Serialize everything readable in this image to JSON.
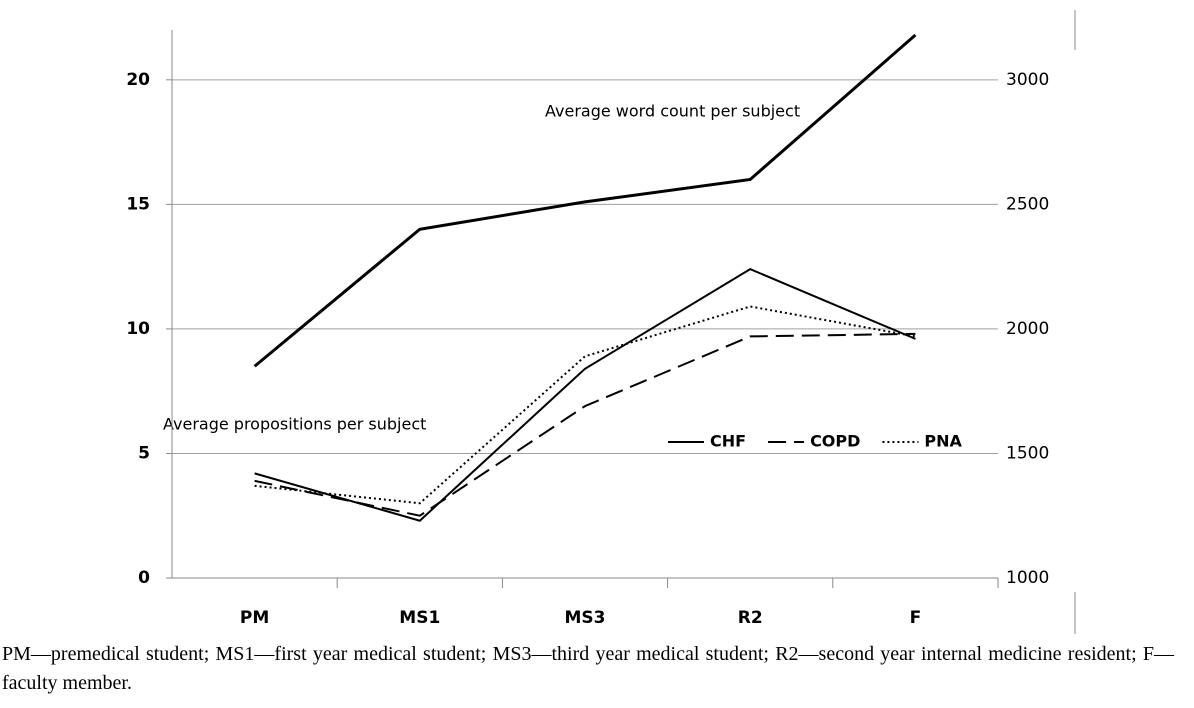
{
  "chart_data": {
    "type": "line",
    "categories": [
      "PM",
      "MS1",
      "MS3",
      "R2",
      "F"
    ],
    "series": [
      {
        "values": [
          1850,
          2400,
          2510,
          2600,
          3180
        ],
        "color": "#000000",
        "style": "solid",
        "axis": "y2"
      },
      {
        "name": "CHF",
        "values": [
          4.2,
          2.3,
          8.4,
          12.4,
          9.6
        ],
        "color": "#000000",
        "style": "solid"
      },
      {
        "name": "COPD",
        "values": [
          3.9,
          2.5,
          6.9,
          9.7,
          9.8
        ],
        "color": "#000000",
        "style": "dashed"
      },
      {
        "name": "PNA",
        "values": [
          3.7,
          3.0,
          8.9,
          10.9,
          9.7
        ],
        "color": "#000000",
        "style": "dotted"
      }
    ],
    "annotations": [
      "Average word count per subject",
      "Average propositions per subject"
    ],
    "ylim": [
      0,
      22
    ],
    "yticks": [
      0,
      5,
      10,
      15,
      20
    ],
    "y2lim": [
      1000,
      3200
    ],
    "y2ticks": [
      1000,
      1500,
      2000,
      2500,
      3000
    ],
    "grid": true,
    "caption": "PM—premedical student; MS1—first year medical student; MS3—third year medical student; R2—second year internal medicine resident; F—faculty member."
  }
}
